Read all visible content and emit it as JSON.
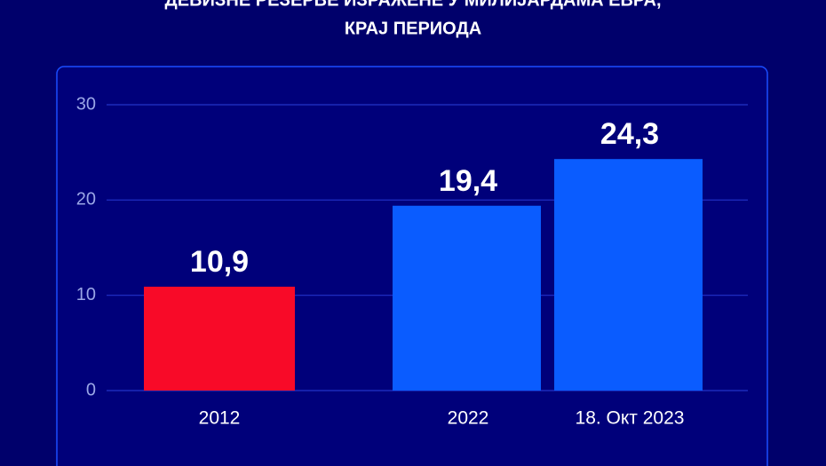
{
  "chart_data": {
    "type": "bar",
    "title": [
      "ДЕВИЗНЕ РЕЗЕРВЕ ИЗРАЖЕНЕ У МИЛИЈАРДАМА ЕВРА,",
      "КРАЈ ПЕРИОДА"
    ],
    "categories": [
      "2012",
      "2022",
      "18. Окт 2023"
    ],
    "values": [
      10.9,
      19.4,
      24.3
    ],
    "value_labels": [
      "10,9",
      "19,4",
      "24,3"
    ],
    "colors": [
      "#f80a28",
      "#0a5cff",
      "#0a5cff"
    ],
    "ylim": [
      0,
      30
    ],
    "yticks": [
      0,
      10,
      20,
      30
    ],
    "grid": true
  }
}
